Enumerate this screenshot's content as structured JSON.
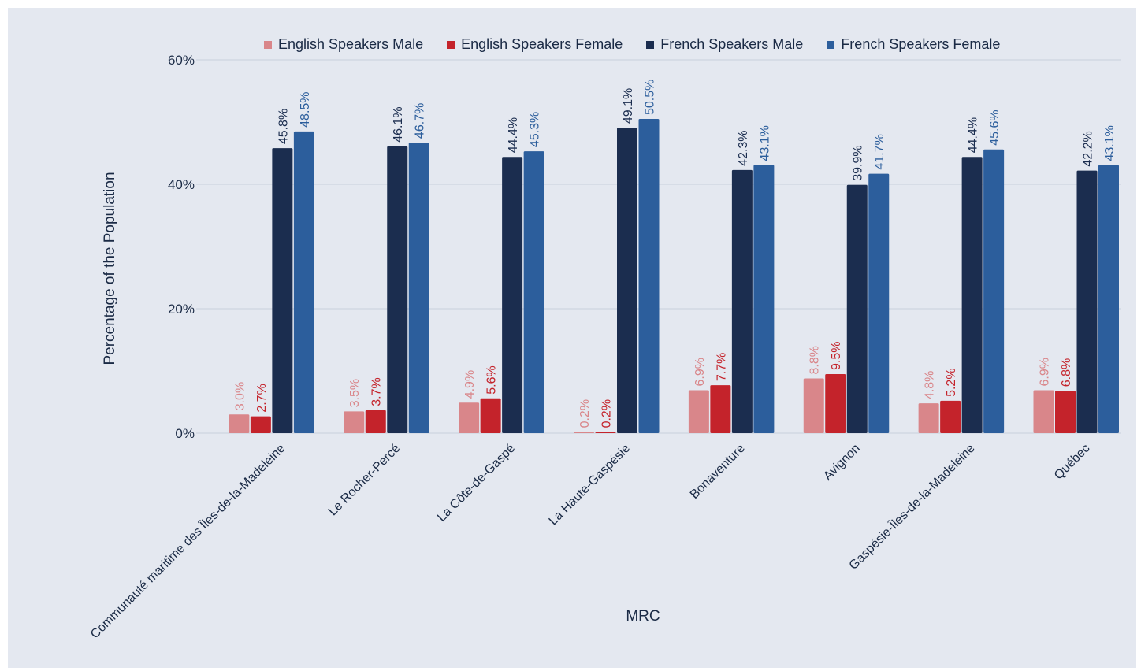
{
  "chart_data": {
    "type": "bar",
    "title": "",
    "xlabel": "MRC",
    "ylabel": "Percentage of the Population",
    "ylim": [
      0,
      60
    ],
    "yticks": [
      "0%",
      "20%",
      "40%",
      "60%"
    ],
    "ytick_values": [
      0,
      20,
      40,
      60
    ],
    "grid": true,
    "legend_position": "top-center",
    "categories": [
      "Communauté maritime des Îles-de-la-Madeleine",
      "Le Rocher-Percé",
      "La Côte-de-Gaspé",
      "La Haute-Gaspésie",
      "Bonaventure",
      "Avignon",
      "Gaspésie-Îles-de-la-Madeleine",
      "Québec"
    ],
    "series": [
      {
        "name": "English Speakers Male",
        "color": "#d9868a",
        "values": [
          3.0,
          3.5,
          4.9,
          0.2,
          6.9,
          8.8,
          4.8,
          6.9
        ],
        "labels": [
          "3.0%",
          "3.5%",
          "4.9%",
          "0.2%",
          "6.9%",
          "8.8%",
          "4.8%",
          "6.9%"
        ]
      },
      {
        "name": "English Speakers Female",
        "color": "#c4232b",
        "values": [
          2.7,
          3.7,
          5.6,
          0.2,
          7.7,
          9.5,
          5.2,
          6.8
        ],
        "labels": [
          "2.7%",
          "3.7%",
          "5.6%",
          "0.2%",
          "7.7%",
          "9.5%",
          "5.2%",
          "6.8%"
        ]
      },
      {
        "name": "French Speakers Male",
        "color": "#1b2d4f",
        "values": [
          45.8,
          46.1,
          44.4,
          49.1,
          42.3,
          39.9,
          44.4,
          42.2
        ],
        "labels": [
          "45.8%",
          "46.1%",
          "44.4%",
          "49.1%",
          "42.3%",
          "39.9%",
          "44.4%",
          "42.2%"
        ]
      },
      {
        "name": "French Speakers Female",
        "color": "#2c5e9c",
        "values": [
          48.5,
          46.7,
          45.3,
          50.5,
          43.1,
          41.7,
          45.6,
          43.1
        ],
        "labels": [
          "48.5%",
          "46.7%",
          "45.3%",
          "50.5%",
          "43.1%",
          "41.7%",
          "45.6%",
          "43.1%"
        ]
      }
    ]
  }
}
